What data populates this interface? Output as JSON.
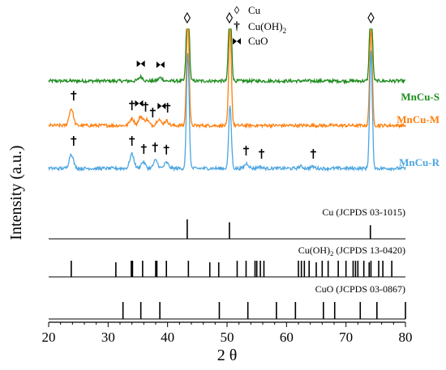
{
  "chart_data": {
    "type": "line",
    "xlabel": "2 θ",
    "ylabel": "Intensity (a.u.)",
    "xlim": [
      20,
      80
    ],
    "x_ticks": [
      20,
      30,
      40,
      50,
      60,
      70,
      80
    ],
    "grid": false,
    "legend": {
      "placement": "top-center",
      "entries": [
        {
          "symbol": "◊",
          "label": "Cu"
        },
        {
          "symbol": "†",
          "label_main": "Cu(OH)",
          "label_sub": "2"
        },
        {
          "symbol": "⋈",
          "label": "CuO"
        }
      ]
    },
    "series": [
      {
        "name": "MnCu-S",
        "color": "#1e8c1e",
        "baseline": 0.44,
        "noise": 0.05,
        "peaks": [
          [
            35.5,
            0.13
          ],
          [
            38.8,
            0.1
          ],
          [
            43.4,
            3.2
          ],
          [
            50.5,
            3.0
          ],
          [
            74.2,
            3.0
          ]
        ],
        "markers": [
          {
            "x": 35.5,
            "symbol": "cuo"
          },
          {
            "x": 38.8,
            "symbol": "cuo"
          },
          {
            "x": 43.3,
            "symbol": "cu"
          },
          {
            "x": 50.4,
            "symbol": "cu"
          },
          {
            "x": 74.2,
            "symbol": "cu"
          }
        ]
      },
      {
        "name": "MnCu-M",
        "color": "#ff7f0e",
        "baseline": 0.0,
        "noise": 0.05,
        "peaks": [
          [
            23.8,
            0.52
          ],
          [
            34.0,
            0.22
          ],
          [
            35.5,
            0.28
          ],
          [
            36.5,
            0.18
          ],
          [
            38.5,
            0.2
          ],
          [
            39.8,
            0.15
          ],
          [
            43.4,
            3.3
          ],
          [
            50.5,
            3.0
          ],
          [
            74.2,
            3.0
          ]
        ],
        "markers": [
          {
            "x": 24.2,
            "symbol": "dagger"
          },
          {
            "x": 34.0,
            "symbol": "dagger"
          },
          {
            "x": 35.2,
            "symbol": "cuo"
          },
          {
            "x": 36.3,
            "symbol": "dagger"
          },
          {
            "x": 37.5,
            "symbol": "dagger"
          },
          {
            "x": 39.0,
            "symbol": "cuo"
          },
          {
            "x": 40.0,
            "symbol": "dagger"
          }
        ]
      },
      {
        "name": "MnCu-R",
        "color": "#4da6e0",
        "baseline": -0.5,
        "noise": 0.05,
        "peaks": [
          [
            23.8,
            0.45
          ],
          [
            34.0,
            0.45
          ],
          [
            35.9,
            0.2
          ],
          [
            38.0,
            0.25
          ],
          [
            39.8,
            0.18
          ],
          [
            43.4,
            3.6
          ],
          [
            50.5,
            1.95
          ],
          [
            53.3,
            0.15
          ],
          [
            55.5,
            0.05
          ],
          [
            62.4,
            0.06
          ],
          [
            64.4,
            0.05
          ],
          [
            74.2,
            3.6
          ]
        ],
        "markers": [
          {
            "x": 24.2,
            "symbol": "dagger"
          },
          {
            "x": 34.0,
            "symbol": "dagger"
          },
          {
            "x": 36.0,
            "symbol": "dagger"
          },
          {
            "x": 37.9,
            "symbol": "dagger"
          },
          {
            "x": 39.8,
            "symbol": "dagger"
          },
          {
            "x": 53.2,
            "symbol": "dagger"
          },
          {
            "x": 55.8,
            "symbol": "dagger"
          },
          {
            "x": 64.5,
            "symbol": "dagger"
          }
        ]
      }
    ],
    "references": [
      {
        "label": "Cu (JCPDS 03-1015)",
        "lines": [
          [
            43.3,
            1.0
          ],
          [
            50.4,
            0.85
          ],
          [
            74.1,
            0.7
          ]
        ]
      },
      {
        "label_main": "Cu(OH)",
        "label_sub": "2",
        "label_tail": " (JCPDS 13-0420)",
        "lines": [
          [
            23.8,
            1.0
          ],
          [
            31.3,
            0.9
          ],
          [
            33.9,
            1.0
          ],
          [
            34.1,
            1.0
          ],
          [
            35.8,
            1.0
          ],
          [
            38.0,
            1.0
          ],
          [
            38.2,
            1.0
          ],
          [
            39.8,
            1.0
          ],
          [
            43.5,
            1.0
          ],
          [
            47.1,
            0.9
          ],
          [
            48.6,
            0.9
          ],
          [
            51.7,
            1.0
          ],
          [
            53.2,
            1.0
          ],
          [
            54.7,
            1.0
          ],
          [
            55.0,
            1.0
          ],
          [
            55.6,
            1.0
          ],
          [
            56.2,
            1.0
          ],
          [
            62.0,
            1.0
          ],
          [
            62.5,
            1.0
          ],
          [
            63.0,
            1.0
          ],
          [
            63.8,
            1.0
          ],
          [
            65.0,
            0.9
          ],
          [
            66.0,
            1.0
          ],
          [
            67.0,
            1.0
          ],
          [
            68.7,
            1.0
          ],
          [
            70.0,
            1.0
          ],
          [
            71.2,
            1.0
          ],
          [
            71.6,
            1.0
          ],
          [
            72.0,
            1.0
          ],
          [
            73.0,
            1.0
          ],
          [
            73.9,
            0.9
          ],
          [
            74.2,
            1.0
          ],
          [
            75.5,
            1.0
          ],
          [
            76.2,
            1.0
          ],
          [
            77.7,
            1.0
          ]
        ]
      },
      {
        "label": "CuO (JCPDS 03-0867)",
        "lines": [
          [
            32.5,
            1.0
          ],
          [
            35.5,
            1.0
          ],
          [
            38.7,
            1.0
          ],
          [
            48.7,
            1.0
          ],
          [
            53.5,
            1.0
          ],
          [
            58.3,
            1.0
          ],
          [
            61.5,
            1.0
          ],
          [
            66.2,
            1.0
          ],
          [
            68.1,
            1.0
          ],
          [
            72.4,
            1.0
          ],
          [
            75.2,
            1.0
          ],
          [
            80.0,
            1.0
          ]
        ]
      }
    ]
  }
}
